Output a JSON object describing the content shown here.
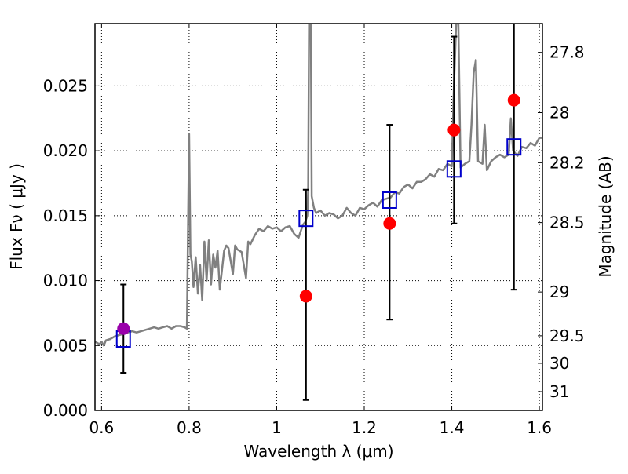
{
  "chart_data": {
    "type": "scatter",
    "xlabel": "Wavelength  λ (μm)",
    "ylabel": "Flux  Fν  ( μJy )",
    "y2label": "Magnitude (AB)",
    "xlim": [
      0.585,
      1.607
    ],
    "ylim": [
      0.0,
      0.0298
    ],
    "grid": true,
    "x_ticks": [
      0.6,
      0.8,
      1.0,
      1.2,
      1.4,
      1.6
    ],
    "x_tick_labels": [
      "0.6",
      "0.8",
      "1",
      "1.2",
      "1.4",
      "1.6"
    ],
    "y_ticks": [
      0.0,
      0.005,
      0.01,
      0.015,
      0.02,
      0.025
    ],
    "y_tick_labels": [
      "0.000",
      "0.005",
      "0.010",
      "0.015",
      "0.020",
      "0.025"
    ],
    "y2_ticks": [
      {
        "label": "27.8",
        "flux": 0.02758
      },
      {
        "label": "28",
        "flux": 0.02294
      },
      {
        "label": "28.2",
        "flux": 0.01908
      },
      {
        "label": "28.5",
        "flux": 0.01447
      },
      {
        "label": "29",
        "flux": 0.00912
      },
      {
        "label": "29.5",
        "flux": 0.00575
      },
      {
        "label": "30",
        "flux": 0.00363
      },
      {
        "label": "31",
        "flux": 0.00145
      }
    ],
    "series": [
      {
        "kind": "line",
        "color": "#808080",
        "x": [
          0.585,
          0.595,
          0.6,
          0.605,
          0.61,
          0.62,
          0.63,
          0.64,
          0.65,
          0.66,
          0.67,
          0.68,
          0.69,
          0.7,
          0.71,
          0.72,
          0.73,
          0.74,
          0.75,
          0.76,
          0.77,
          0.78,
          0.79,
          0.795,
          0.8,
          0.803,
          0.806,
          0.81,
          0.815,
          0.82,
          0.825,
          0.83,
          0.835,
          0.84,
          0.845,
          0.85,
          0.855,
          0.86,
          0.865,
          0.87,
          0.88,
          0.885,
          0.89,
          0.9,
          0.905,
          0.91,
          0.92,
          0.93,
          0.935,
          0.94,
          0.95,
          0.96,
          0.97,
          0.98,
          0.99,
          1.0,
          1.01,
          1.02,
          1.03,
          1.04,
          1.05,
          1.06,
          1.065,
          1.07,
          1.072,
          1.074,
          1.076,
          1.078,
          1.08,
          1.085,
          1.09,
          1.1,
          1.11,
          1.12,
          1.13,
          1.14,
          1.15,
          1.16,
          1.17,
          1.18,
          1.19,
          1.2,
          1.21,
          1.22,
          1.23,
          1.24,
          1.25,
          1.26,
          1.27,
          1.28,
          1.29,
          1.3,
          1.31,
          1.32,
          1.33,
          1.34,
          1.35,
          1.36,
          1.37,
          1.38,
          1.39,
          1.4,
          1.405,
          1.41,
          1.415,
          1.42,
          1.43,
          1.44,
          1.445,
          1.45,
          1.455,
          1.46,
          1.47,
          1.475,
          1.48,
          1.49,
          1.5,
          1.51,
          1.52,
          1.53,
          1.535,
          1.54,
          1.55,
          1.56,
          1.57,
          1.58,
          1.59,
          1.6,
          1.607
        ],
        "y": [
          0.0053,
          0.0051,
          0.0053,
          0.005,
          0.0054,
          0.0055,
          0.0057,
          0.0058,
          0.0059,
          0.006,
          0.0061,
          0.006,
          0.0061,
          0.0062,
          0.0063,
          0.0064,
          0.0063,
          0.0064,
          0.0065,
          0.0063,
          0.0065,
          0.0065,
          0.0064,
          0.0063,
          0.0213,
          0.012,
          0.0115,
          0.0095,
          0.0118,
          0.009,
          0.0112,
          0.0085,
          0.013,
          0.01,
          0.0131,
          0.0097,
          0.012,
          0.011,
          0.0123,
          0.0093,
          0.0123,
          0.0127,
          0.0125,
          0.0105,
          0.0127,
          0.0124,
          0.0122,
          0.0102,
          0.013,
          0.0128,
          0.0135,
          0.014,
          0.0138,
          0.0142,
          0.014,
          0.0141,
          0.0138,
          0.0141,
          0.0142,
          0.0136,
          0.0133,
          0.0143,
          0.0145,
          0.015,
          0.017,
          0.0298,
          0.0298,
          0.0298,
          0.0165,
          0.0156,
          0.0152,
          0.0154,
          0.015,
          0.0152,
          0.0151,
          0.0148,
          0.015,
          0.0156,
          0.0152,
          0.015,
          0.0156,
          0.0155,
          0.0158,
          0.016,
          0.0157,
          0.0162,
          0.0163,
          0.0164,
          0.0168,
          0.0167,
          0.0172,
          0.0174,
          0.0171,
          0.0176,
          0.0176,
          0.0178,
          0.0182,
          0.018,
          0.0186,
          0.0185,
          0.019,
          0.0188,
          0.025,
          0.0298,
          0.0298,
          0.0187,
          0.019,
          0.0192,
          0.022,
          0.026,
          0.027,
          0.0192,
          0.019,
          0.022,
          0.0185,
          0.0192,
          0.0195,
          0.0197,
          0.0195,
          0.0197,
          0.0225,
          0.02,
          0.0196,
          0.0203,
          0.0202,
          0.0206,
          0.0204,
          0.021,
          0.021
        ]
      },
      {
        "kind": "open-square",
        "color": "#0000cc",
        "x": [
          0.65,
          1.067,
          1.258,
          1.405,
          1.542
        ],
        "y": [
          0.0055,
          0.0148,
          0.0162,
          0.0186,
          0.0203
        ]
      },
      {
        "kind": "filled-circle-errorbar",
        "color": "#ff0000",
        "x": [
          1.067,
          1.258,
          1.405,
          1.542
        ],
        "y": [
          0.0088,
          0.0144,
          0.0216,
          0.0239
        ],
        "yerr_low": [
          0.008,
          0.0074,
          0.0072,
          0.0146
        ],
        "yerr_high": [
          0.0082,
          0.0076,
          0.0072,
          0.006
        ]
      },
      {
        "kind": "filled-circle-errorbar",
        "color": "#9900aa",
        "x": [
          0.65
        ],
        "y": [
          0.0063
        ],
        "yerr_low": [
          0.0034
        ],
        "yerr_high": [
          0.0034
        ]
      }
    ]
  }
}
